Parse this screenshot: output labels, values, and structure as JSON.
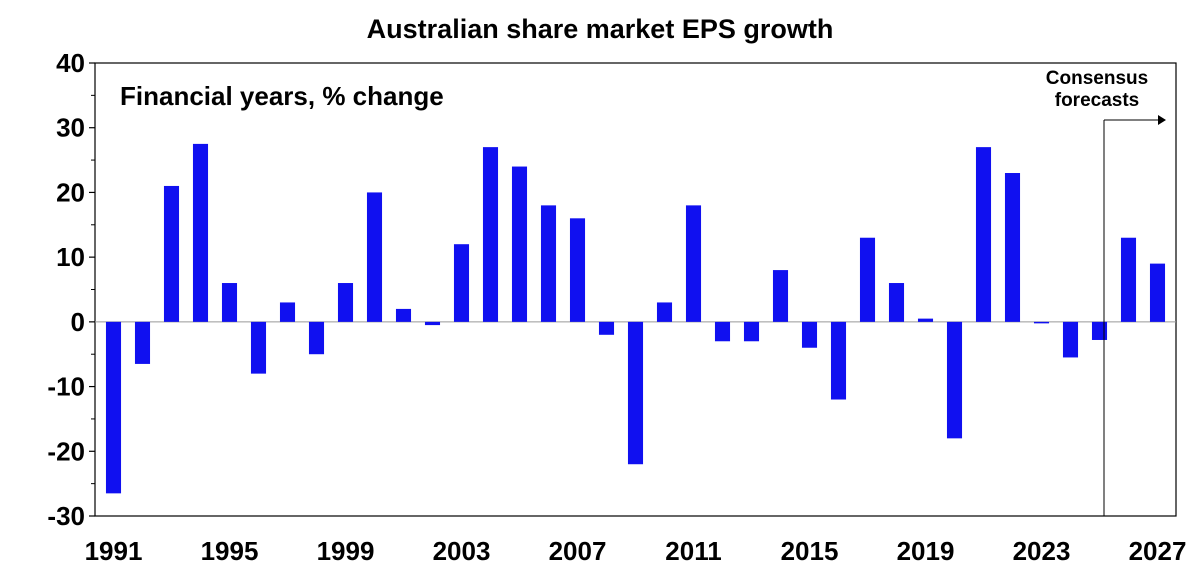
{
  "chart_data": {
    "type": "bar",
    "title": "Australian share market EPS growth",
    "subtitle": "Financial years, % change",
    "xlabel": "",
    "ylabel": "",
    "ylim": [
      -30,
      40
    ],
    "yticks": [
      -30,
      -20,
      -10,
      0,
      10,
      20,
      30,
      40
    ],
    "x_tick_labels": [
      "1991",
      "1995",
      "1999",
      "2003",
      "2007",
      "2011",
      "2015",
      "2019",
      "2023",
      "2027"
    ],
    "bar_color": "#1010F0",
    "categories": [
      "1991",
      "1992",
      "1993",
      "1994",
      "1995",
      "1996",
      "1997",
      "1998",
      "1999",
      "2000",
      "2001",
      "2002",
      "2003",
      "2004",
      "2005",
      "2006",
      "2007",
      "2008",
      "2009",
      "2010",
      "2011",
      "2012",
      "2013",
      "2014",
      "2015",
      "2016",
      "2017",
      "2018",
      "2019",
      "2020",
      "2021",
      "2022",
      "2023",
      "2024",
      "2025",
      "2026",
      "2027"
    ],
    "values": [
      -26.5,
      -6.5,
      21,
      27.5,
      6,
      -8,
      3,
      -5,
      6,
      20,
      2,
      -0.5,
      12,
      27,
      24,
      18,
      16,
      -2,
      -22,
      3,
      18,
      -3,
      -3,
      8,
      -4,
      -12,
      13,
      6,
      0.5,
      -18,
      27,
      23,
      -0.2,
      -5.5,
      -2.8,
      13,
      9
    ],
    "annotation": {
      "text_lines": [
        "Consensus",
        "forecasts"
      ],
      "from_category": "2026"
    },
    "grid": false,
    "legend": "none"
  }
}
